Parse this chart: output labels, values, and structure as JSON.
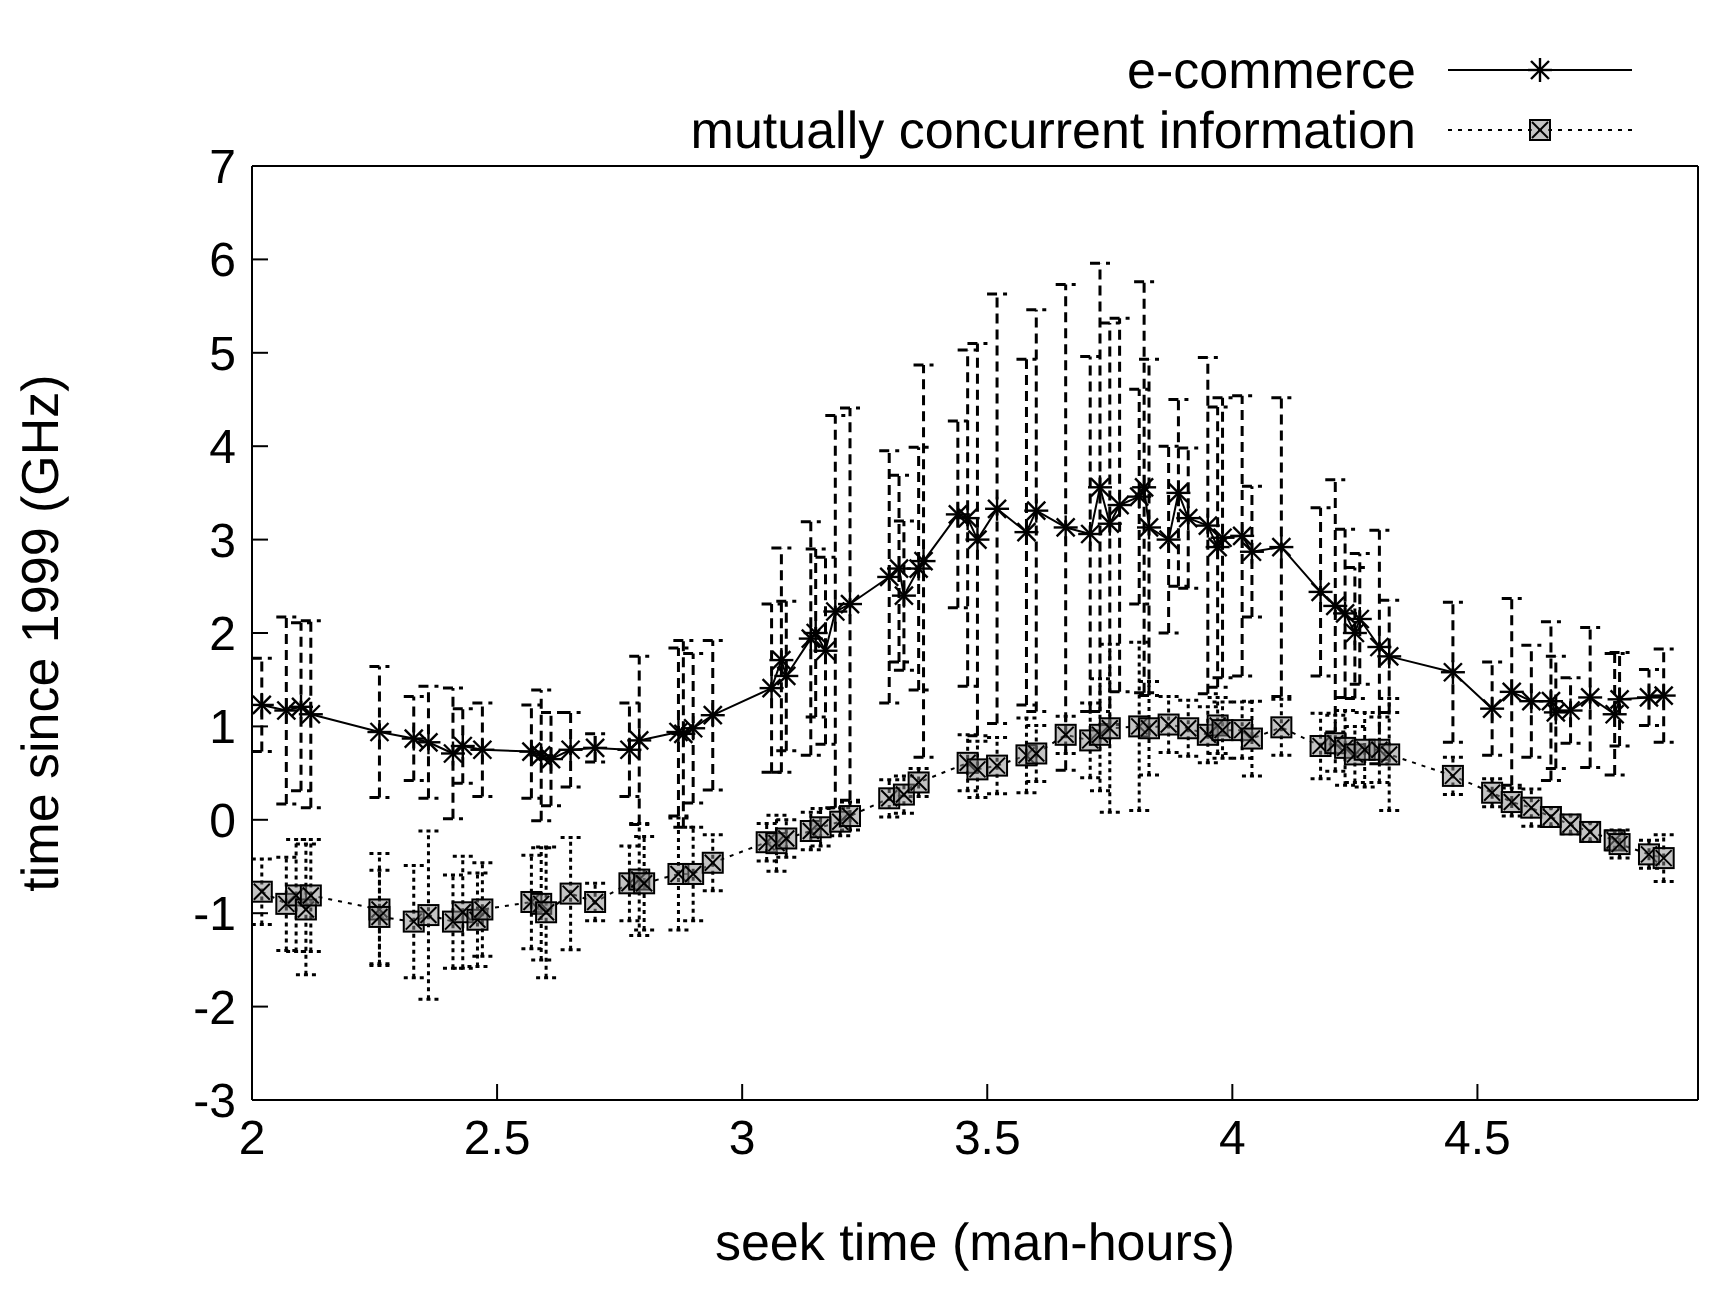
{
  "chart_data": {
    "type": "line",
    "xlabel": "seek time (man-hours)",
    "ylabel": "time since 1999 (GHz)",
    "xlim": [
      2,
      4.95
    ],
    "xticks": [
      2,
      2.5,
      3,
      3.5,
      4,
      4.5
    ],
    "ylim": [
      -3,
      7
    ],
    "yticks": [
      -3,
      -2,
      -1,
      0,
      1,
      2,
      3,
      4,
      5,
      6,
      7
    ],
    "legend": "top right",
    "series": [
      {
        "name": "e-commerce",
        "color": "#000000",
        "marker": "cross",
        "line_style": "solid",
        "x": [
          2.02,
          2.07,
          2.1,
          2.12,
          2.26,
          2.33,
          2.36,
          2.41,
          2.43,
          2.47,
          2.57,
          2.59,
          2.61,
          2.65,
          2.7,
          2.77,
          2.79,
          2.87,
          2.88,
          2.9,
          2.94,
          3.06,
          3.08,
          3.09,
          3.14,
          3.15,
          3.17,
          3.19,
          3.22,
          3.3,
          3.32,
          3.33,
          3.36,
          3.37,
          3.44,
          3.46,
          3.48,
          3.52,
          3.58,
          3.6,
          3.66,
          3.71,
          3.73,
          3.75,
          3.77,
          3.81,
          3.82,
          3.83,
          3.87,
          3.89,
          3.91,
          3.95,
          3.97,
          3.98,
          4.02,
          4.04,
          4.1,
          4.18,
          4.21,
          4.23,
          4.25,
          4.26,
          4.3,
          4.32,
          4.45,
          4.53,
          4.57,
          4.61,
          4.65,
          4.66,
          4.69,
          4.73,
          4.78,
          4.79,
          4.85,
          4.88
        ],
        "values": [
          1.23,
          1.17,
          1.21,
          1.13,
          0.94,
          0.87,
          0.83,
          0.71,
          0.79,
          0.75,
          0.73,
          0.69,
          0.65,
          0.75,
          0.77,
          0.75,
          0.85,
          0.94,
          0.92,
          0.98,
          1.12,
          1.41,
          1.71,
          1.54,
          1.94,
          2.0,
          1.81,
          2.23,
          2.31,
          2.6,
          2.69,
          2.4,
          2.69,
          2.77,
          3.27,
          3.23,
          3.0,
          3.33,
          3.08,
          3.31,
          3.13,
          3.06,
          3.56,
          3.17,
          3.37,
          3.46,
          3.56,
          3.13,
          3.0,
          3.5,
          3.23,
          3.15,
          2.92,
          3.02,
          3.04,
          2.87,
          2.92,
          2.44,
          2.29,
          2.21,
          2.0,
          2.15,
          1.85,
          1.75,
          1.58,
          1.19,
          1.37,
          1.27,
          1.27,
          1.15,
          1.17,
          1.31,
          1.13,
          1.29,
          1.31,
          1.33
        ],
        "errors": [
          0.5,
          1.0,
          0.9,
          1.0,
          0.7,
          0.45,
          0.6,
          0.7,
          0.4,
          0.5,
          0.5,
          0.7,
          0.5,
          0.4,
          0.15,
          0.5,
          0.9,
          0.9,
          1.0,
          0.8,
          0.8,
          0.9,
          1.2,
          0.8,
          1.25,
          0.9,
          1.0,
          2.1,
          2.1,
          1.35,
          1.0,
          0.8,
          1.3,
          2.1,
          1.0,
          1.8,
          2.1,
          2.3,
          1.85,
          2.15,
          2.6,
          1.9,
          2.4,
          2.15,
          2.0,
          1.15,
          2.2,
          1.8,
          1.0,
          1.0,
          0.75,
          1.8,
          1.5,
          1.5,
          1.5,
          0.7,
          1.6,
          0.9,
          1.35,
          0.9,
          0.7,
          0.7,
          1.25,
          0.6,
          0.75,
          0.5,
          1.0,
          0.6,
          0.85,
          0.6,
          0.35,
          0.75,
          0.65,
          0.5,
          0.3,
          0.5
        ]
      },
      {
        "name": "mutually concurrent information",
        "color": "#000000",
        "marker": "square",
        "line_style": "dotted",
        "x": [
          2.02,
          2.07,
          2.09,
          2.11,
          2.12,
          2.26,
          2.26,
          2.33,
          2.36,
          2.41,
          2.43,
          2.46,
          2.47,
          2.57,
          2.59,
          2.6,
          2.65,
          2.7,
          2.77,
          2.79,
          2.8,
          2.87,
          2.9,
          2.94,
          3.05,
          3.07,
          3.09,
          3.14,
          3.16,
          3.2,
          3.22,
          3.3,
          3.33,
          3.36,
          3.46,
          3.48,
          3.52,
          3.58,
          3.6,
          3.66,
          3.71,
          3.73,
          3.75,
          3.81,
          3.83,
          3.87,
          3.91,
          3.95,
          3.97,
          3.98,
          4.02,
          4.04,
          4.1,
          4.18,
          4.21,
          4.23,
          4.25,
          4.27,
          4.3,
          4.32,
          4.45,
          4.53,
          4.57,
          4.61,
          4.65,
          4.69,
          4.73,
          4.78,
          4.79,
          4.85,
          4.88
        ],
        "values": [
          -0.77,
          -0.9,
          -0.81,
          -0.96,
          -0.81,
          -0.96,
          -1.04,
          -1.09,
          -1.02,
          -1.09,
          -0.99,
          -1.07,
          -0.96,
          -0.88,
          -0.9,
          -0.99,
          -0.79,
          -0.88,
          -0.68,
          -0.64,
          -0.68,
          -0.58,
          -0.58,
          -0.46,
          -0.24,
          -0.25,
          -0.2,
          -0.12,
          -0.08,
          -0.02,
          0.04,
          0.23,
          0.27,
          0.4,
          0.61,
          0.54,
          0.58,
          0.69,
          0.71,
          0.91,
          0.85,
          0.91,
          0.98,
          1.0,
          0.98,
          1.02,
          0.98,
          0.91,
          1.01,
          0.96,
          0.96,
          0.87,
          0.99,
          0.79,
          0.82,
          0.77,
          0.7,
          0.75,
          0.75,
          0.7,
          0.47,
          0.29,
          0.19,
          0.13,
          0.03,
          -0.05,
          -0.13,
          -0.22,
          -0.26,
          -0.37,
          -0.41
        ],
        "errors": [
          0.35,
          0.5,
          0.6,
          0.7,
          0.6,
          0.6,
          0.5,
          0.6,
          0.9,
          0.5,
          0.6,
          0.5,
          0.5,
          0.5,
          0.6,
          0.7,
          0.6,
          0.2,
          0.4,
          0.6,
          0.5,
          0.6,
          0.5,
          0.3,
          0.2,
          0.3,
          0.2,
          0.2,
          0.2,
          0.15,
          0.15,
          0.2,
          0.2,
          0.15,
          0.3,
          0.3,
          0.3,
          0.4,
          0.3,
          0.2,
          0.4,
          0.6,
          0.9,
          0.9,
          0.5,
          0.3,
          0.3,
          0.3,
          0.3,
          0.3,
          0.3,
          0.4,
          0.3,
          0.35,
          0.3,
          0.4,
          0.3,
          0.4,
          0.35,
          0.6,
          0.2,
          0.15,
          0.15,
          0.2,
          0.1,
          0.1,
          0.1,
          0.1,
          0.15,
          0.15,
          0.25
        ]
      }
    ]
  }
}
